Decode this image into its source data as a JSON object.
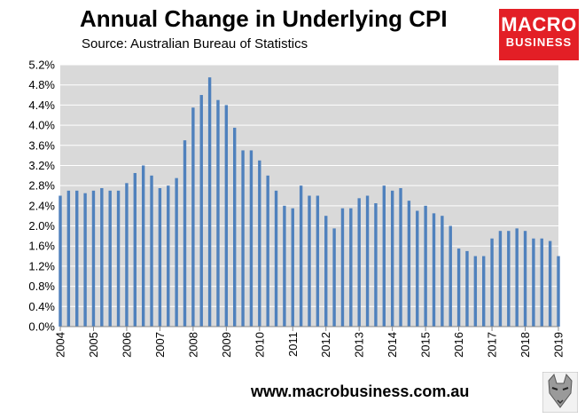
{
  "chart_data": {
    "type": "bar",
    "title": "Annual Change in Underlying CPI",
    "subtitle": "Source: Australian Bureau of Statistics",
    "xlabel": "",
    "ylabel": "",
    "ylim": [
      0,
      5.2
    ],
    "yticks": [
      "0.0%",
      "0.4%",
      "0.8%",
      "1.2%",
      "1.6%",
      "2.0%",
      "2.4%",
      "2.8%",
      "3.2%",
      "3.6%",
      "4.0%",
      "4.4%",
      "4.8%",
      "5.2%"
    ],
    "year_labels": [
      "2004",
      "2005",
      "2006",
      "2007",
      "2008",
      "2009",
      "2010",
      "2011",
      "2012",
      "2013",
      "2014",
      "2015",
      "2016",
      "2017",
      "2018",
      "2019"
    ],
    "grid": true,
    "color": "#4f81bd",
    "plot_background": "#d9d9d9",
    "values": [
      2.6,
      2.7,
      2.7,
      2.65,
      2.7,
      2.75,
      2.7,
      2.7,
      2.85,
      3.05,
      3.2,
      3.0,
      2.75,
      2.8,
      2.95,
      3.7,
      4.35,
      4.6,
      4.95,
      4.5,
      4.4,
      3.95,
      3.5,
      3.5,
      3.3,
      3.0,
      2.7,
      2.4,
      2.35,
      2.8,
      2.6,
      2.6,
      2.2,
      1.95,
      2.35,
      2.35,
      2.55,
      2.6,
      2.45,
      2.8,
      2.7,
      2.75,
      2.5,
      2.3,
      2.4,
      2.25,
      2.2,
      2.0,
      1.55,
      1.5,
      1.4,
      1.4,
      1.75,
      1.9,
      1.9,
      1.95,
      1.9,
      1.75,
      1.75,
      1.7,
      1.4
    ]
  },
  "brand": {
    "logo_line1": "MACRO",
    "logo_line2": "BUSINESS",
    "logo_color": "#e31f26",
    "website": "www.macrobusiness.com.au"
  }
}
